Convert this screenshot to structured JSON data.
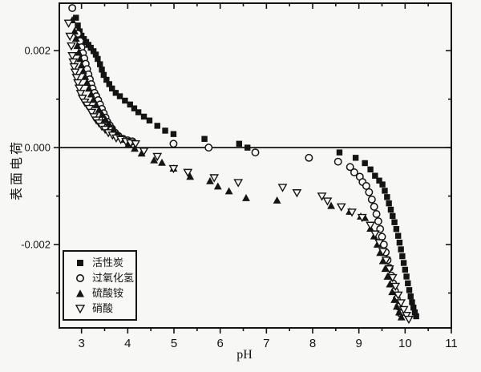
{
  "figure": {
    "background": "#f7f7f5",
    "ink": "#141414"
  },
  "chart_data": {
    "type": "scatter",
    "title": "",
    "xlabel": "pH",
    "ylabel": "表面电荷",
    "xlim": [
      2.52,
      11.0
    ],
    "ylim": [
      -0.00372,
      0.00298
    ],
    "grid": false,
    "zero_line": true,
    "legend_position": "lower-left",
    "x_major_ticks": [
      3,
      4,
      5,
      6,
      7,
      8,
      9,
      10,
      11
    ],
    "x_major_tick_labels": [
      "3",
      "4",
      "5",
      "6",
      "7",
      "8",
      "9",
      "10",
      "11"
    ],
    "x_minor_ticks": [
      3.5,
      4.5,
      5.5,
      6.5,
      7.5,
      8.5,
      9.5,
      10.5
    ],
    "y_major_ticks": [
      0.002,
      0.0,
      -0.002
    ],
    "y_major_tick_labels": [
      "0.002",
      "0.000",
      "-0.002"
    ],
    "y_minor_ticks": [
      0.001,
      -0.001,
      -0.003
    ],
    "series": [
      {
        "name": "活性炭",
        "id": "activated-carbon",
        "marker": "filled-square",
        "points": [
          [
            2.88,
            0.00268
          ],
          [
            2.92,
            0.00252
          ],
          [
            2.96,
            0.0024
          ],
          [
            3.0,
            0.00231
          ],
          [
            3.05,
            0.00224
          ],
          [
            3.1,
            0.00218
          ],
          [
            3.15,
            0.00212
          ],
          [
            3.2,
            0.00206
          ],
          [
            3.26,
            0.00199
          ],
          [
            3.31,
            0.00192
          ],
          [
            3.35,
            0.00183
          ],
          [
            3.4,
            0.00172
          ],
          [
            3.44,
            0.00161
          ],
          [
            3.48,
            0.0015
          ],
          [
            3.54,
            0.0014
          ],
          [
            3.6,
            0.00131
          ],
          [
            3.66,
            0.00122
          ],
          [
            3.74,
            0.00113
          ],
          [
            3.83,
            0.00106
          ],
          [
            3.94,
            0.00097
          ],
          [
            4.05,
            0.00089
          ],
          [
            4.14,
            0.00081
          ],
          [
            4.23,
            0.00073
          ],
          [
            4.35,
            0.00064
          ],
          [
            4.47,
            0.00056
          ],
          [
            4.64,
            0.00045
          ],
          [
            4.81,
            0.00035
          ],
          [
            4.99,
            0.00028
          ],
          [
            5.66,
            0.00018
          ],
          [
            6.41,
            8e-05
          ],
          [
            6.59,
            0.0
          ],
          [
            8.58,
            -0.0001
          ],
          [
            8.93,
            -0.00021
          ],
          [
            9.13,
            -0.00032
          ],
          [
            9.25,
            -0.00045
          ],
          [
            9.35,
            -0.00058
          ],
          [
            9.44,
            -0.00068
          ],
          [
            9.51,
            -0.00076
          ],
          [
            9.56,
            -0.00089
          ],
          [
            9.61,
            -0.00102
          ],
          [
            9.65,
            -0.00115
          ],
          [
            9.69,
            -0.00128
          ],
          [
            9.73,
            -0.00141
          ],
          [
            9.77,
            -0.00154
          ],
          [
            9.81,
            -0.00168
          ],
          [
            9.85,
            -0.00182
          ],
          [
            9.88,
            -0.00196
          ],
          [
            9.91,
            -0.0021
          ],
          [
            9.94,
            -0.00224
          ],
          [
            9.97,
            -0.00238
          ],
          [
            10.0,
            -0.00252
          ],
          [
            10.03,
            -0.00266
          ],
          [
            10.06,
            -0.0028
          ],
          [
            10.09,
            -0.00294
          ],
          [
            10.12,
            -0.00307
          ],
          [
            10.15,
            -0.00319
          ],
          [
            10.18,
            -0.0033
          ],
          [
            10.21,
            -0.0034
          ],
          [
            10.24,
            -0.00348
          ]
        ]
      },
      {
        "name": "过氧化氢",
        "id": "hydrogen-peroxide",
        "marker": "open-circle",
        "points": [
          [
            2.8,
            0.00288
          ],
          [
            2.92,
            0.00235
          ],
          [
            2.97,
            0.0022
          ],
          [
            3.0,
            0.00207
          ],
          [
            3.03,
            0.00195
          ],
          [
            3.06,
            0.00184
          ],
          [
            3.09,
            0.00173
          ],
          [
            3.12,
            0.00162
          ],
          [
            3.15,
            0.00151
          ],
          [
            3.18,
            0.00141
          ],
          [
            3.21,
            0.00131
          ],
          [
            3.24,
            0.00122
          ],
          [
            3.28,
            0.00113
          ],
          [
            3.32,
            0.00106
          ],
          [
            3.36,
            0.00098
          ],
          [
            3.4,
            0.00089
          ],
          [
            3.44,
            0.0008
          ],
          [
            3.48,
            0.00071
          ],
          [
            3.52,
            0.00062
          ],
          [
            3.56,
            0.00053
          ],
          [
            3.61,
            0.00046
          ],
          [
            3.66,
            0.00039
          ],
          [
            3.72,
            0.00031
          ],
          [
            3.8,
            0.00024
          ],
          [
            3.9,
            0.00018
          ],
          [
            4.0,
            0.00015
          ],
          [
            4.1,
            0.00013
          ],
          [
            4.99,
            8e-05
          ],
          [
            5.75,
            0.0
          ],
          [
            6.76,
            -0.0001
          ],
          [
            7.92,
            -0.00021
          ],
          [
            8.55,
            -0.00029
          ],
          [
            8.81,
            -0.0004
          ],
          [
            8.9,
            -0.00051
          ],
          [
            9.02,
            -0.0006
          ],
          [
            9.08,
            -0.00071
          ],
          [
            9.16,
            -0.00079
          ],
          [
            9.22,
            -0.00092
          ],
          [
            9.28,
            -0.00107
          ],
          [
            9.33,
            -0.00122
          ],
          [
            9.38,
            -0.00137
          ],
          [
            9.42,
            -0.00152
          ],
          [
            9.46,
            -0.00168
          ],
          [
            9.5,
            -0.00184
          ],
          [
            9.54,
            -0.002
          ],
          [
            9.58,
            -0.00216
          ],
          [
            9.62,
            -0.00232
          ],
          [
            9.66,
            -0.00248
          ],
          [
            9.7,
            -0.00264
          ],
          [
            9.74,
            -0.0028
          ],
          [
            9.78,
            -0.00296
          ],
          [
            9.82,
            -0.00312
          ],
          [
            9.86,
            -0.00328
          ],
          [
            9.9,
            -0.00342
          ]
        ]
      },
      {
        "name": "硫酸铵",
        "id": "ammonium-sulfate",
        "marker": "filled-triangle-up",
        "points": [
          [
            2.8,
            0.00263
          ],
          [
            2.85,
            0.0024
          ],
          [
            2.88,
            0.00225
          ],
          [
            2.91,
            0.0021
          ],
          [
            2.94,
            0.00196
          ],
          [
            2.97,
            0.00183
          ],
          [
            3.0,
            0.0017
          ],
          [
            3.04,
            0.00158
          ],
          [
            3.08,
            0.00146
          ],
          [
            3.12,
            0.00134
          ],
          [
            3.16,
            0.00122
          ],
          [
            3.21,
            0.0011
          ],
          [
            3.26,
            0.00099
          ],
          [
            3.32,
            0.00088
          ],
          [
            3.38,
            0.00078
          ],
          [
            3.45,
            0.00068
          ],
          [
            3.52,
            0.00058
          ],
          [
            3.6,
            0.00048
          ],
          [
            3.69,
            0.00038
          ],
          [
            3.79,
            0.00028
          ],
          [
            3.9,
            0.00018
          ],
          [
            4.02,
            8e-05
          ],
          [
            4.15,
            -2e-05
          ],
          [
            4.3,
            -0.00012
          ],
          [
            4.57,
            -0.00026
          ],
          [
            4.74,
            -0.00031
          ],
          [
            4.99,
            -0.00043
          ],
          [
            5.35,
            -0.0006
          ],
          [
            5.78,
            -0.00069
          ],
          [
            5.95,
            -0.0008
          ],
          [
            6.19,
            -0.0009
          ],
          [
            6.56,
            -0.00104
          ],
          [
            7.23,
            -0.00109
          ],
          [
            8.4,
            -0.0012
          ],
          [
            8.8,
            -0.00132
          ],
          [
            9.04,
            -0.00142
          ],
          [
            9.13,
            -0.00145
          ],
          [
            9.25,
            -0.00167
          ],
          [
            9.33,
            -0.00183
          ],
          [
            9.4,
            -0.002
          ],
          [
            9.46,
            -0.00217
          ],
          [
            9.52,
            -0.00234
          ],
          [
            9.57,
            -0.0025
          ],
          [
            9.62,
            -0.00266
          ],
          [
            9.67,
            -0.00282
          ],
          [
            9.72,
            -0.00298
          ],
          [
            9.77,
            -0.00314
          ],
          [
            9.82,
            -0.00328
          ],
          [
            9.87,
            -0.0034
          ],
          [
            9.92,
            -0.0035
          ]
        ]
      },
      {
        "name": "硝酸",
        "id": "nitric-acid",
        "marker": "open-triangle-down",
        "points": [
          [
            2.72,
            0.00257
          ],
          [
            2.75,
            0.0023
          ],
          [
            2.78,
            0.0021
          ],
          [
            2.8,
            0.0019
          ],
          [
            2.82,
            0.00177
          ],
          [
            2.84,
            0.00167
          ],
          [
            2.86,
            0.00156
          ],
          [
            2.89,
            0.00145
          ],
          [
            2.92,
            0.00134
          ],
          [
            2.95,
            0.00123
          ],
          [
            2.98,
            0.00112
          ],
          [
            3.02,
            0.00102
          ],
          [
            3.07,
            0.00094
          ],
          [
            3.12,
            0.00088
          ],
          [
            3.17,
            0.00081
          ],
          [
            3.22,
            0.00073
          ],
          [
            3.27,
            0.00064
          ],
          [
            3.32,
            0.00057
          ],
          [
            3.38,
            0.00051
          ],
          [
            3.44,
            0.00044
          ],
          [
            3.51,
            0.00038
          ],
          [
            3.58,
            0.00031
          ],
          [
            3.67,
            0.00026
          ],
          [
            3.75,
            0.0002
          ],
          [
            3.85,
            0.00017
          ],
          [
            3.96,
            0.00013
          ],
          [
            4.06,
            0.0001
          ],
          [
            4.17,
            8e-05
          ],
          [
            4.35,
            -7e-05
          ],
          [
            4.64,
            -0.00018
          ],
          [
            4.99,
            -0.00043
          ],
          [
            5.3,
            -0.00051
          ],
          [
            5.87,
            -0.00062
          ],
          [
            6.39,
            -0.00072
          ],
          [
            7.35,
            -0.00082
          ],
          [
            7.66,
            -0.00093
          ],
          [
            8.2,
            -0.001
          ],
          [
            8.32,
            -0.0011
          ],
          [
            8.62,
            -0.00122
          ],
          [
            8.85,
            -0.00133
          ],
          [
            9.07,
            -0.00144
          ],
          [
            9.25,
            -0.0016
          ],
          [
            9.35,
            -0.00178
          ],
          [
            9.44,
            -0.00196
          ],
          [
            9.52,
            -0.00214
          ],
          [
            9.59,
            -0.00232
          ],
          [
            9.66,
            -0.0025
          ],
          [
            9.73,
            -0.00268
          ],
          [
            9.79,
            -0.00286
          ],
          [
            9.85,
            -0.00304
          ],
          [
            9.91,
            -0.0032
          ],
          [
            9.97,
            -0.00334
          ],
          [
            10.03,
            -0.00346
          ],
          [
            10.08,
            -0.00354
          ]
        ]
      }
    ]
  }
}
